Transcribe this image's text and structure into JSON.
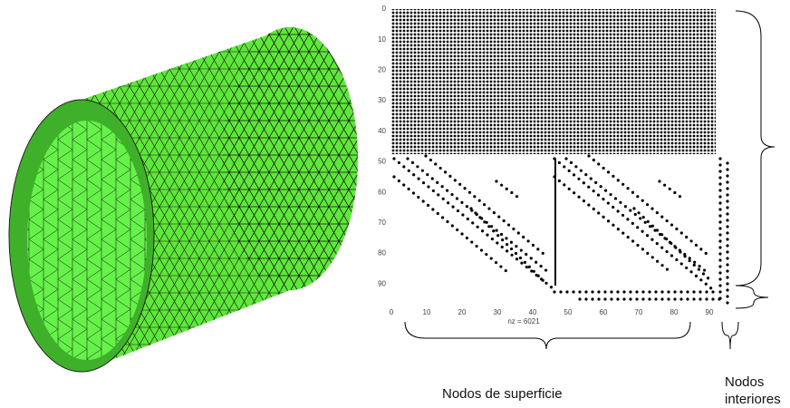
{
  "spy": {
    "yticks": [
      0,
      10,
      20,
      30,
      40,
      50,
      60,
      70,
      80,
      90
    ],
    "xticks": [
      0,
      10,
      20,
      30,
      40,
      50,
      60,
      70,
      80,
      90
    ],
    "xlabel": "nz = 6021"
  },
  "annotations": {
    "surface": "Nodos de superficie",
    "interior": "Nodos interiores"
  }
}
